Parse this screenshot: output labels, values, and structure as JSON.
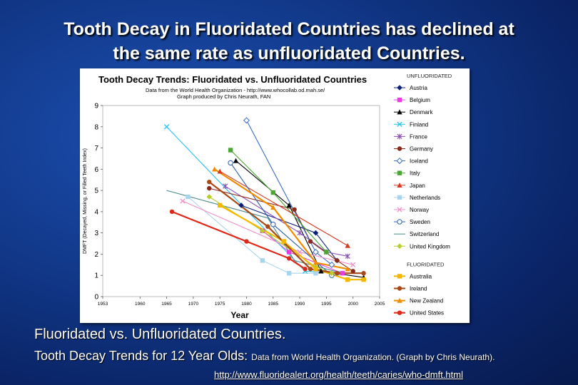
{
  "slide": {
    "title_line1": "Tooth Decay in Fluoridated Countries has declined at",
    "title_line2": "the same rate as unfluoridated Countries.",
    "caption_line1": "Fluoridated vs. Unfluoridated Countries.",
    "caption_line2_main": "Tooth Decay Trends for 12 Year Olds: ",
    "caption_line2_small": "Data from World Health Organization. (Graph by Chris Neurath).",
    "url": "http://www.fluoridealert.org/health/teeth/caries/who-dmft.html"
  },
  "chart_data": {
    "type": "line",
    "title": "Tooth Decay Trends:  Fluoridated vs. Unfluoridated Countries",
    "subtitle_line1": "Data from the World Health Organization - http://www.whocollab.od.mah.se/",
    "subtitle_line2": "Graph produced by Chris Neurath, FAN",
    "xlabel": "Year",
    "ylabel": "DMFT (Decayed, Missing, or Filled Teeth Index)",
    "xlim": [
      1953,
      2005
    ],
    "ylim": [
      0,
      9
    ],
    "xticks": [
      "1953",
      "1960",
      "1965",
      "1970",
      "1975",
      "1980",
      "1985",
      "1990",
      "1995",
      "2000",
      "2005"
    ],
    "yticks": [
      "0",
      "1",
      "2",
      "3",
      "4",
      "5",
      "6",
      "7",
      "8",
      "9"
    ],
    "grid": false,
    "legend_position": "right",
    "legend_group_unfluoridated": "UNFLUORIDATED",
    "legend_group_fluoridated": "FLUORIDATED",
    "series": [
      {
        "name": "Austria",
        "group": "unfluoridated",
        "color": "#0a1f7a",
        "marker": "diamond",
        "points": [
          [
            1979,
            4.3
          ],
          [
            1993,
            3.0
          ],
          [
            1997,
            1.7
          ]
        ]
      },
      {
        "name": "Belgium",
        "group": "unfluoridated",
        "color": "#e83ee0",
        "marker": "square",
        "points": [
          [
            1983,
            3.1
          ],
          [
            1988,
            2.1
          ],
          [
            1998,
            1.1
          ]
        ]
      },
      {
        "name": "Denmark",
        "group": "unfluoridated",
        "color": "#000000",
        "marker": "triangle",
        "points": [
          [
            1978,
            6.4
          ],
          [
            1988,
            4.3
          ],
          [
            1994,
            1.2
          ],
          [
            2002,
            0.9
          ]
        ]
      },
      {
        "name": "Finland",
        "group": "unfluoridated",
        "color": "#27c2f0",
        "marker": "x",
        "points": [
          [
            1965,
            8.0
          ],
          [
            1991,
            1.2
          ],
          [
            1997,
            1.1
          ]
        ]
      },
      {
        "name": "France",
        "group": "unfluoridated",
        "color": "#8a52b8",
        "marker": "star",
        "points": [
          [
            1976,
            5.2
          ],
          [
            1990,
            3.0
          ],
          [
            1995,
            2.1
          ],
          [
            1999,
            1.9
          ]
        ]
      },
      {
        "name": "Germany",
        "group": "unfluoridated",
        "color": "#8a2a1a",
        "marker": "circle",
        "points": [
          [
            1973,
            5.1
          ],
          [
            1989,
            4.1
          ],
          [
            1992,
            2.6
          ],
          [
            1997,
            1.7
          ],
          [
            2000,
            1.2
          ]
        ]
      },
      {
        "name": "Iceland",
        "group": "unfluoridated",
        "color": "#3a6cc4",
        "marker": "open-diamond",
        "points": [
          [
            1980,
            8.3
          ],
          [
            1993,
            2.1
          ],
          [
            1996,
            1.5
          ]
        ]
      },
      {
        "name": "Italy",
        "group": "unfluoridated",
        "color": "#4aa832",
        "marker": "square",
        "points": [
          [
            1977,
            6.9
          ],
          [
            1985,
            4.9
          ],
          [
            1995,
            2.1
          ]
        ]
      },
      {
        "name": "Japan",
        "group": "unfluoridated",
        "color": "#d63a20",
        "marker": "triangle",
        "points": [
          [
            1975,
            5.9
          ],
          [
            1999,
            2.4
          ]
        ]
      },
      {
        "name": "Netherlands",
        "group": "unfluoridated",
        "color": "#a8d4ec",
        "marker": "square",
        "points": [
          [
            1969,
            4.7
          ],
          [
            1983,
            1.7
          ],
          [
            1988,
            1.1
          ],
          [
            1993,
            1.1
          ]
        ]
      },
      {
        "name": "Norway",
        "group": "unfluoridated",
        "color": "#f090c8",
        "marker": "x",
        "points": [
          [
            1968,
            4.5
          ],
          [
            1990,
            2.1
          ],
          [
            2000,
            1.5
          ]
        ]
      },
      {
        "name": "Sweden",
        "group": "unfluoridated",
        "color": "#2a60a8",
        "marker": "open-circle",
        "points": [
          [
            1977,
            6.3
          ],
          [
            1985,
            3.4
          ],
          [
            1996,
            1.0
          ]
        ]
      },
      {
        "name": "Switzerland",
        "group": "unfluoridated",
        "color": "#4a8a8a",
        "marker": "none",
        "points": [
          [
            1965,
            5.0
          ],
          [
            1984,
            3.7
          ],
          [
            1989,
            1.7
          ],
          [
            1998,
            1.1
          ]
        ]
      },
      {
        "name": "United Kingdom",
        "group": "unfluoridated",
        "color": "#b8cc2a",
        "marker": "diamond",
        "points": [
          [
            1973,
            4.7
          ],
          [
            1983,
            3.1
          ],
          [
            1993,
            1.4
          ],
          [
            1996,
            1.1
          ]
        ]
      },
      {
        "name": "Australia",
        "group": "fluoridated",
        "color": "#f5b800",
        "marker": "square",
        "points": [
          [
            1975,
            4.3
          ],
          [
            1987,
            2.6
          ],
          [
            1993,
            1.3
          ],
          [
            1999,
            0.8
          ],
          [
            2002,
            0.8
          ]
        ]
      },
      {
        "name": "Ireland",
        "group": "fluoridated",
        "color": "#a84a18",
        "marker": "circle",
        "points": [
          [
            1973,
            5.4
          ],
          [
            1984,
            3.3
          ],
          [
            1992,
            1.3
          ],
          [
            1997,
            1.1
          ],
          [
            2002,
            1.1
          ]
        ]
      },
      {
        "name": "New Zealand",
        "group": "fluoridated",
        "color": "#f08c00",
        "marker": "triangle",
        "points": [
          [
            1974,
            6.0
          ],
          [
            1985,
            4.2
          ],
          [
            1993,
            1.6
          ],
          [
            1999,
            1.3
          ]
        ]
      },
      {
        "name": "United States",
        "group": "fluoridated",
        "color": "#e02818",
        "marker": "circle",
        "points": [
          [
            1966,
            4.0
          ],
          [
            1980,
            2.6
          ],
          [
            1988,
            1.8
          ],
          [
            1991,
            1.3
          ]
        ]
      }
    ]
  }
}
